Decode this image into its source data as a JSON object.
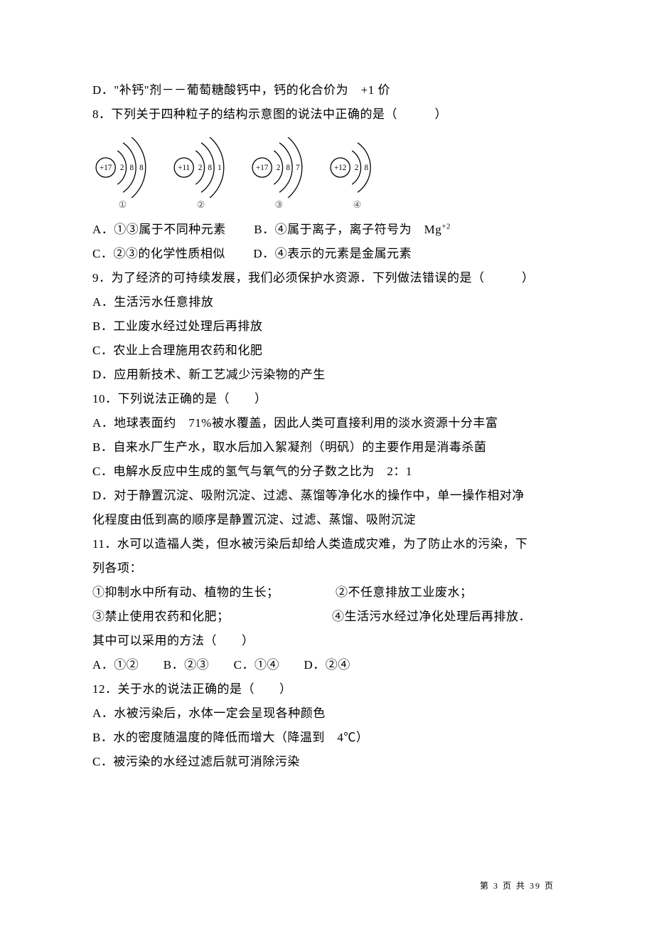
{
  "q7_optD": "D．\"补钙\"剂－－葡萄糖酸钙中，钙的化合价为　+1 价",
  "q8_stem": "8．下列关于四种粒子的结构示意图的说法中正确的是（　　　）",
  "diagrams": {
    "atoms": [
      {
        "nucleus": "+17",
        "shells": [
          "2",
          "8",
          "8"
        ],
        "label": "①"
      },
      {
        "nucleus": "+11",
        "shells": [
          "2",
          "8",
          "1"
        ],
        "label": "②"
      },
      {
        "nucleus": "+17",
        "shells": [
          "2",
          "8",
          "7"
        ],
        "label": "③"
      },
      {
        "nucleus": "+12",
        "shells": [
          "2",
          "8"
        ],
        "label": "④"
      }
    ],
    "arc_color": "#000000",
    "circle_color": "#000000",
    "text_color": "#000000",
    "fontsize": 13
  },
  "q8_optA": "A．①③属于不同种元素",
  "q8_optB_pre": "B．④属于离子，离子符号为　Mg",
  "q8_optB_sup": "+2",
  "q8_optC": "C．②③的化学性质相似",
  "q8_optD": "D．④表示的元素是金属元素",
  "q9_stem": "9．为了经济的可持续发展，我们必须保护水资源．下列做法错误的是（　　　）",
  "q9_optA": "A．生活污水任意排放",
  "q9_optB": "B．工业废水经过处理后再排放",
  "q9_optC": "C．农业上合理施用农药和化肥",
  "q9_optD": "D．应用新技术、新工艺减少污染物的产生",
  "q10_stem": "10．下列说法正确的是（　　）",
  "q10_optA": "A．地球表面约　71%被水覆盖，因此人类可直接利用的淡水资源十分丰富",
  "q10_optB": "B．自来水厂生产水，取水后加入絮凝剂（明矾）的主要作用是消毒杀菌",
  "q10_optC": "C．电解水反应中生成的氢气与氧气的分子数之比为　2：1",
  "q10_optD_l1": "D．对于静置沉淀、吸附沉淀、过滤、蒸馏等净化水的操作中，单一操作相对净",
  "q10_optD_l2": "化程度由低到高的顺序是静置沉淀、过滤、蒸馏、吸附沉淀",
  "q11_stem_l1": "11．水可以造福人类，但水被污染后却给人类造成灾难，为了防止水的污染，下",
  "q11_stem_l2": "列各项：",
  "q11_item1": "①抑制水中所有动、植物的生长；",
  "q11_item2": "②不任意排放工业废水；",
  "q11_item3": "③禁止使用农药和化肥；",
  "q11_item4": "④生活污水经过净化处理后再排放．",
  "q11_sub": "其中可以采用的方法（　　）",
  "q11_optA": "A．①②",
  "q11_optB": "B．②③",
  "q11_optC": "C．①④",
  "q11_optD": "D．②④",
  "q12_stem": "12．关于水的说法正确的是（　　）",
  "q12_optA": "A．水被污染后，水体一定会呈现各种颜色",
  "q12_optB": "B．水的密度随温度的降低而增大（降温到　4℃）",
  "q12_optC": "C．被污染的水经过滤后就可消除污染",
  "footer": "第 3 页 共 39 页"
}
